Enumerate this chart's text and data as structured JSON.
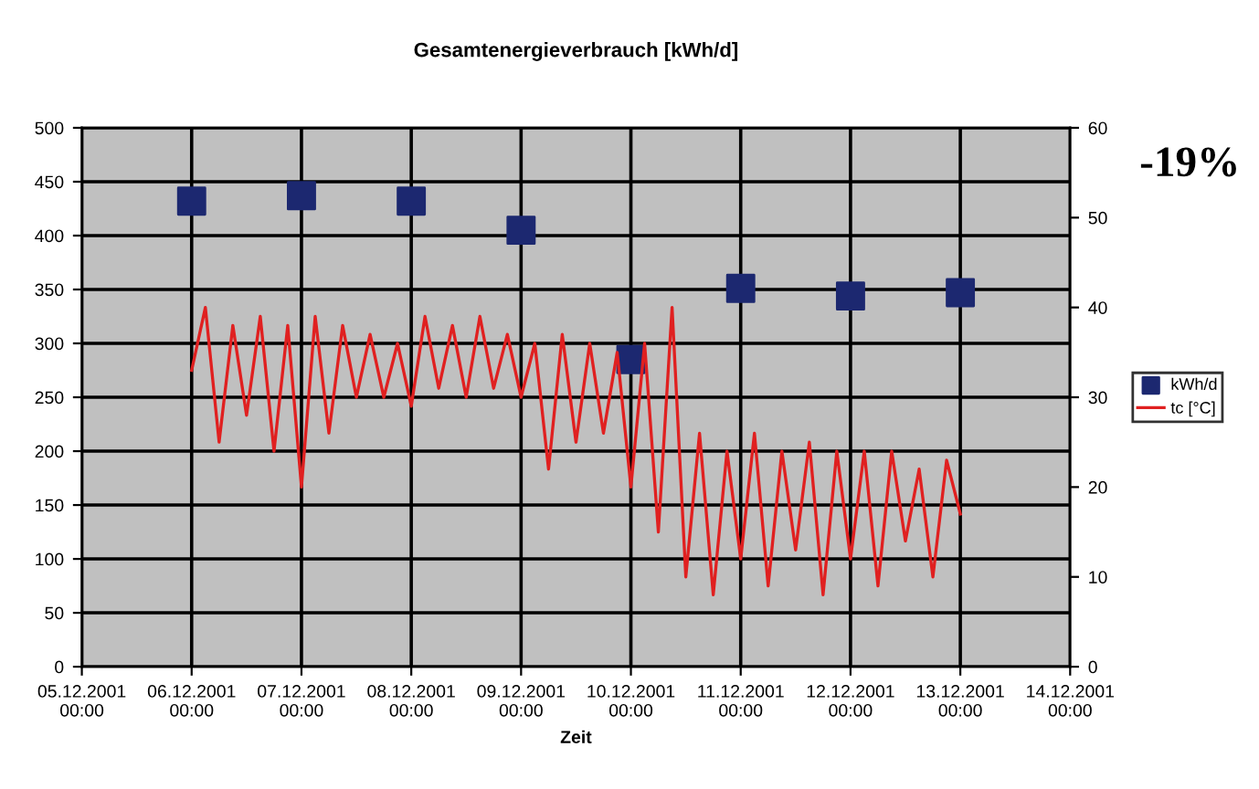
{
  "chart_data": {
    "type": "scatter",
    "title": "Gesamtenergieverbrauch [kWh/d]",
    "xlabel": "Zeit",
    "annotations": [
      "-19%"
    ],
    "xlim": [
      "2001-12-05",
      "2001-12-14"
    ],
    "xticks": [
      {
        "value": "2001-12-05",
        "label": "05.12.2001\n00:00"
      },
      {
        "value": "2001-12-06",
        "label": "06.12.2001\n00:00"
      },
      {
        "value": "2001-12-07",
        "label": "07.12.2001\n00:00"
      },
      {
        "value": "2001-12-08",
        "label": "08.12.2001\n00:00"
      },
      {
        "value": "2001-12-09",
        "label": "09.12.2001\n00:00"
      },
      {
        "value": "2001-12-10",
        "label": "10.12.2001\n00:00"
      },
      {
        "value": "2001-12-11",
        "label": "11.12.2001\n00:00"
      },
      {
        "value": "2001-12-12",
        "label": "12.12.2001\n00:00"
      },
      {
        "value": "2001-12-13",
        "label": "13.12.2001\n00:00"
      },
      {
        "value": "2001-12-14",
        "label": "14.12.2001\n00:00"
      }
    ],
    "ylim": [
      0,
      500
    ],
    "yticks": [
      0,
      50,
      100,
      150,
      200,
      250,
      300,
      350,
      400,
      450,
      500
    ],
    "y2lim": [
      0,
      60
    ],
    "y2ticks": [
      0,
      10,
      20,
      30,
      40,
      50,
      60
    ],
    "grid": true,
    "legend": "right",
    "series": [
      {
        "name": "kWh/d",
        "marker": "square",
        "color": "#1c2870",
        "x": [
          "2001-12-06",
          "2001-12-07",
          "2001-12-08",
          "2001-12-09",
          "2001-12-10",
          "2001-12-11",
          "2001-12-12",
          "2001-12-13"
        ],
        "values": [
          432,
          437,
          432,
          405,
          285,
          351,
          344,
          347
        ]
      },
      {
        "name": "tc [°C]",
        "type": "line",
        "axis": "y2",
        "color": "#e02020",
        "x": [
          "2001-12-06T00:00",
          "2001-12-06T03:00",
          "2001-12-06T06:00",
          "2001-12-06T09:00",
          "2001-12-06T12:00",
          "2001-12-06T15:00",
          "2001-12-06T18:00",
          "2001-12-06T21:00",
          "2001-12-07T00:00",
          "2001-12-07T03:00",
          "2001-12-07T06:00",
          "2001-12-07T09:00",
          "2001-12-07T12:00",
          "2001-12-07T15:00",
          "2001-12-07T18:00",
          "2001-12-07T21:00",
          "2001-12-08T00:00",
          "2001-12-08T03:00",
          "2001-12-08T06:00",
          "2001-12-08T09:00",
          "2001-12-08T12:00",
          "2001-12-08T15:00",
          "2001-12-08T18:00",
          "2001-12-08T21:00",
          "2001-12-09T00:00",
          "2001-12-09T03:00",
          "2001-12-09T06:00",
          "2001-12-09T09:00",
          "2001-12-09T12:00",
          "2001-12-09T15:00",
          "2001-12-09T18:00",
          "2001-12-09T21:00",
          "2001-12-10T00:00",
          "2001-12-10T03:00",
          "2001-12-10T06:00",
          "2001-12-10T09:00",
          "2001-12-10T12:00",
          "2001-12-10T15:00",
          "2001-12-10T18:00",
          "2001-12-10T21:00",
          "2001-12-11T00:00",
          "2001-12-11T03:00",
          "2001-12-11T06:00",
          "2001-12-11T09:00",
          "2001-12-11T12:00",
          "2001-12-11T15:00",
          "2001-12-11T18:00",
          "2001-12-11T21:00",
          "2001-12-12T00:00",
          "2001-12-12T03:00",
          "2001-12-12T06:00",
          "2001-12-12T09:00",
          "2001-12-12T12:00",
          "2001-12-12T15:00",
          "2001-12-12T18:00",
          "2001-12-12T21:00",
          "2001-12-13T00:00"
        ],
        "values": [
          33,
          40,
          25,
          38,
          28,
          39,
          24,
          38,
          20,
          39,
          26,
          38,
          30,
          37,
          30,
          36,
          29,
          39,
          31,
          38,
          30,
          39,
          31,
          37,
          30,
          36,
          22,
          37,
          25,
          36,
          26,
          35,
          20,
          36,
          15,
          40,
          10,
          26,
          8,
          24,
          12,
          26,
          9,
          24,
          13,
          25,
          8,
          24,
          12,
          24,
          9,
          24,
          14,
          22,
          10,
          23,
          17
        ]
      }
    ]
  }
}
